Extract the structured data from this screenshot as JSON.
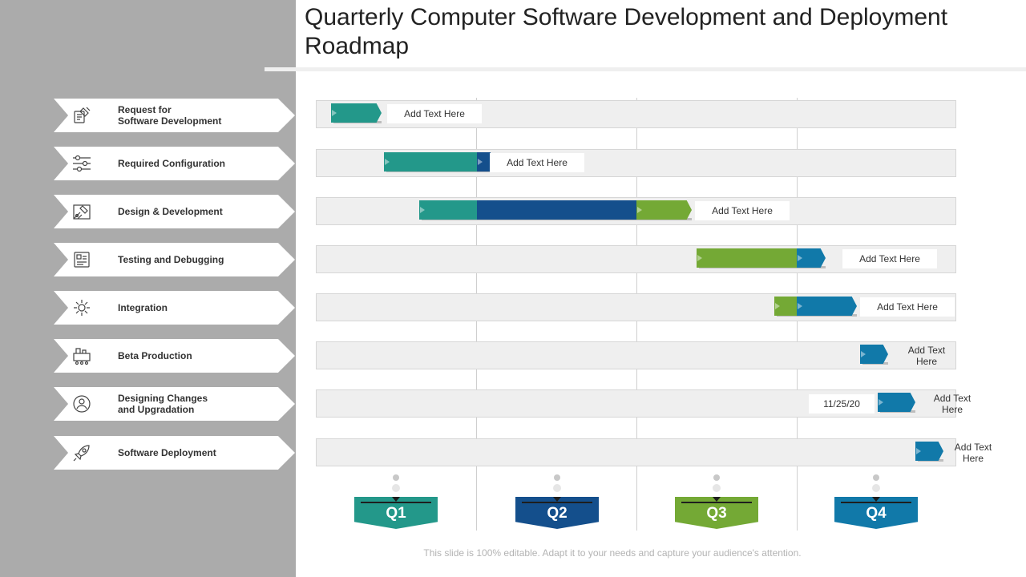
{
  "title": "Quarterly Computer Software Development and Deployment Roadmap",
  "colors": {
    "teal": "#23988a",
    "navy": "#144f8c",
    "green": "#74a935",
    "blue": "#1179a9",
    "panel": "#ababab"
  },
  "tasks": [
    {
      "label": "Request for\nSoftware Development",
      "icon": "request-icon"
    },
    {
      "label": "Required Configuration",
      "icon": "sliders-icon"
    },
    {
      "label": "Design & Development",
      "icon": "design-icon"
    },
    {
      "label": "Testing and Debugging",
      "icon": "testing-icon"
    },
    {
      "label": "Integration",
      "icon": "gear-icon"
    },
    {
      "label": "Beta Production",
      "icon": "factory-icon"
    },
    {
      "label": "Designing Changes\nand Upgradation",
      "icon": "user-cycle-icon"
    },
    {
      "label": "Software Deployment",
      "icon": "rocket-icon"
    }
  ],
  "notes": {
    "r1": "Add Text Here",
    "r2": "Add Text Here",
    "r3": "Add Text Here",
    "r4": "Add Text Here",
    "r5": "Add Text Here",
    "r6": "Add Text\nHere",
    "r7": "Add Text\nHere",
    "r7_date": "11/25/20",
    "r8": "Add Text\nHere"
  },
  "quarters": [
    "Q1",
    "Q2",
    "Q3",
    "Q4"
  ],
  "footer": "This slide is 100% editable. Adapt it to your needs and capture your audience's attention."
}
